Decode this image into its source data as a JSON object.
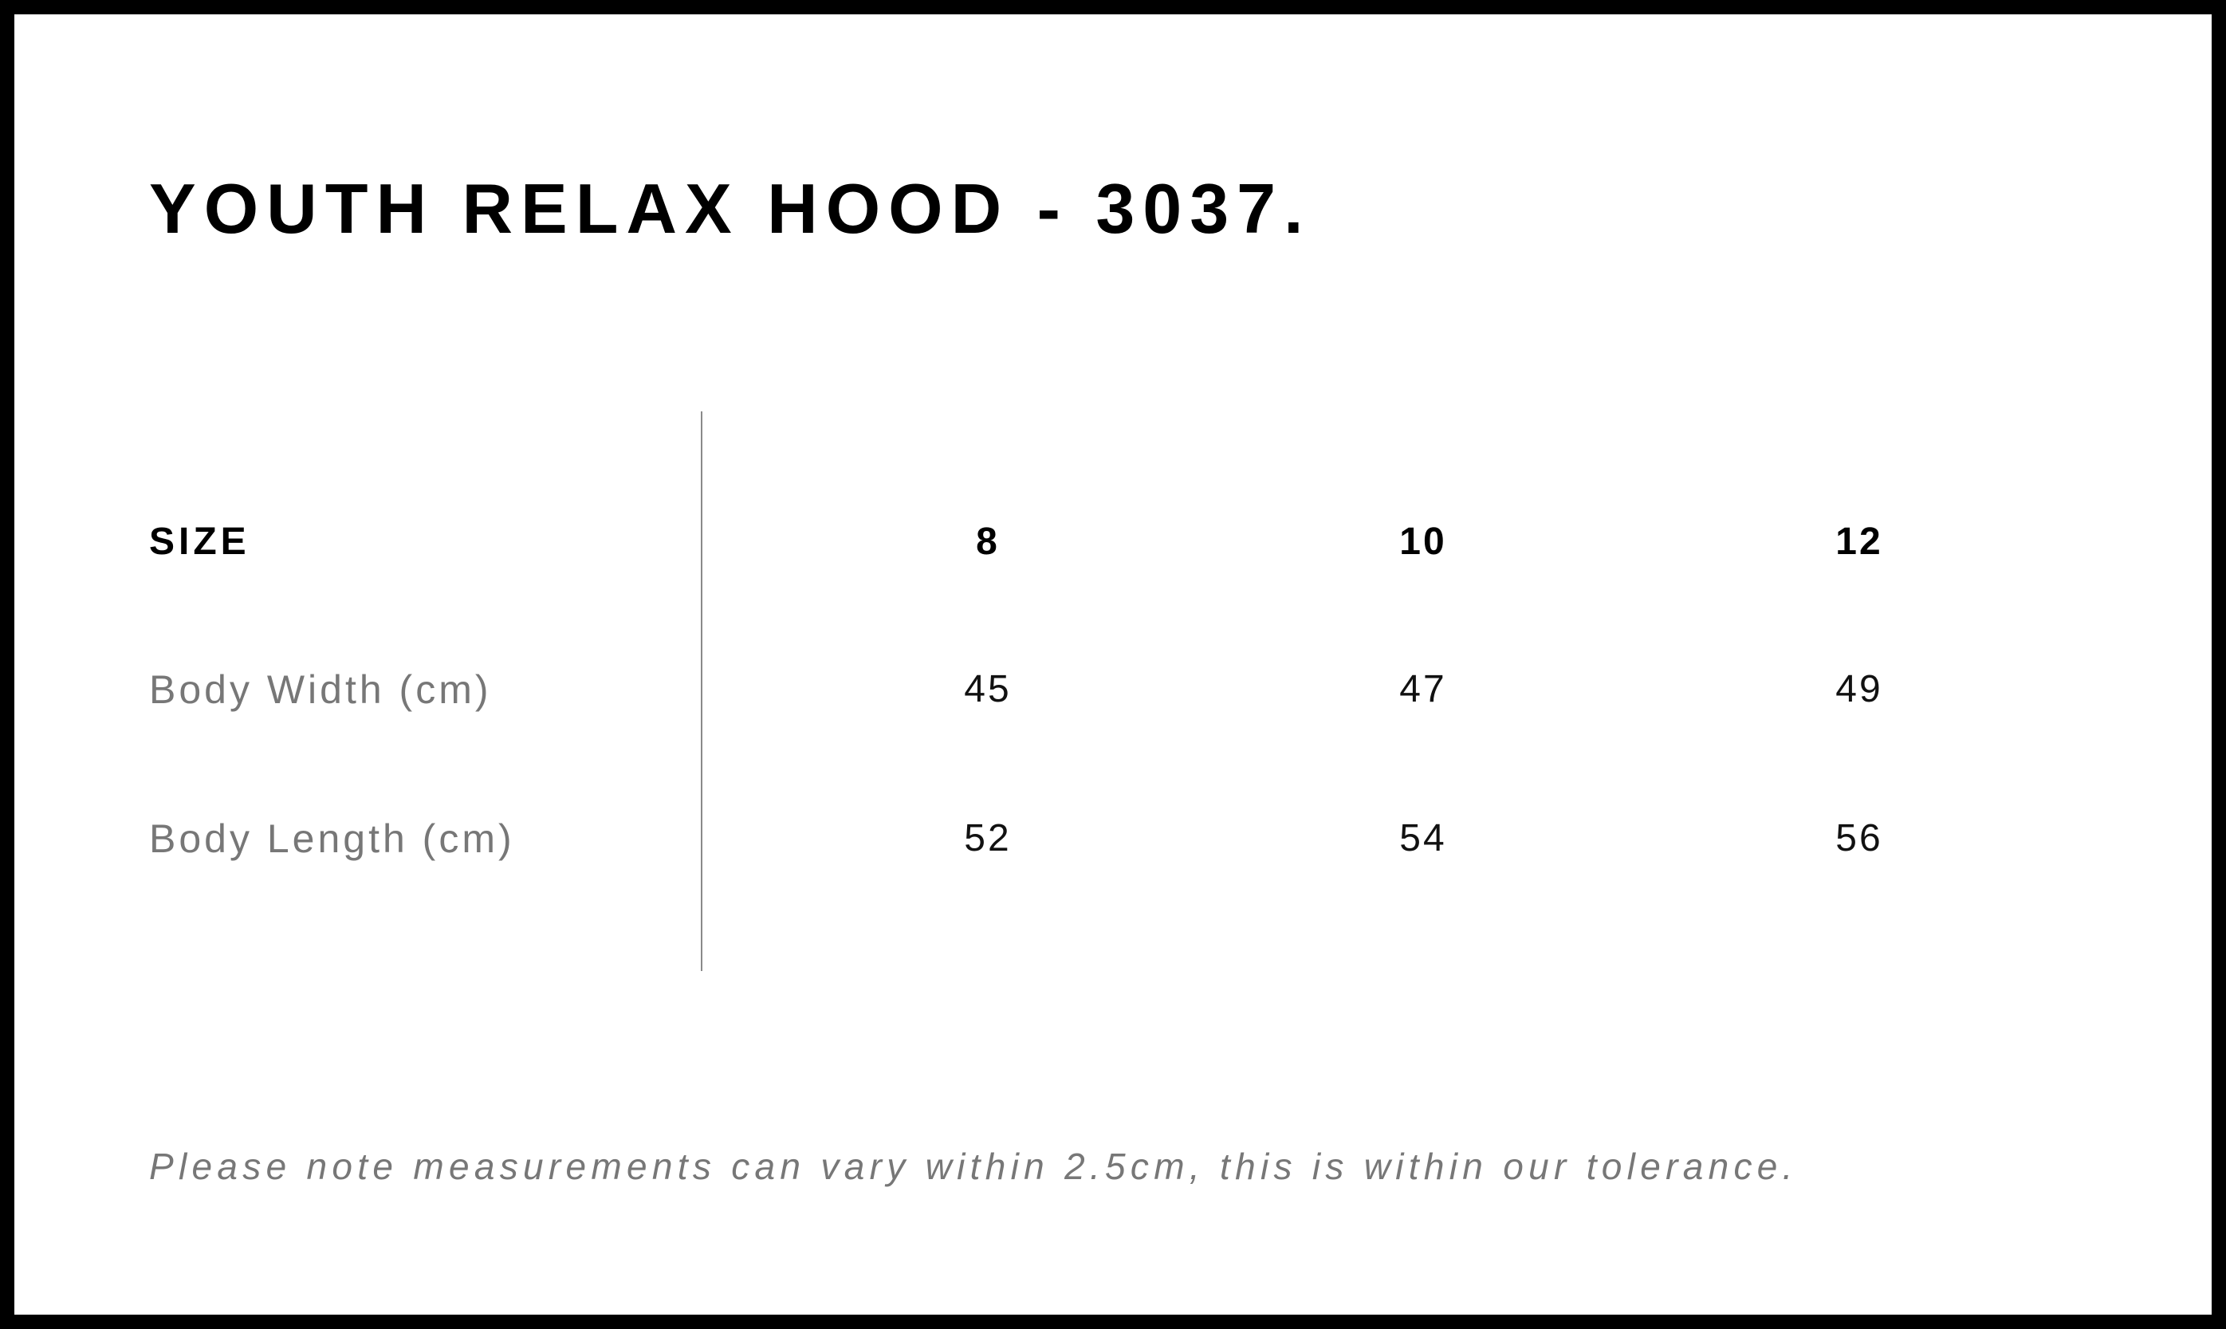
{
  "title": "YOUTH RELAX HOOD - 3037.",
  "table": {
    "header": {
      "label": "SIZE",
      "sizes": [
        "8",
        "10",
        "12"
      ]
    },
    "rows": [
      {
        "label": "Body Width (cm)",
        "values": [
          "45",
          "47",
          "49"
        ]
      },
      {
        "label": "Body Length (cm)",
        "values": [
          "52",
          "54",
          "56"
        ]
      }
    ]
  },
  "note": "Please note measurements can vary within 2.5cm, this is within our tolerance."
}
